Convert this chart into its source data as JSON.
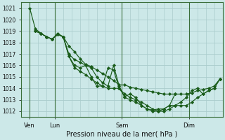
{
  "xlabel": "Pression niveau de la mer( hPa )",
  "bg_color": "#cce8e8",
  "grid_color": "#aacccc",
  "line_color": "#1a5c1a",
  "marker_color": "#1a5c1a",
  "ylim": [
    1011.5,
    1021.5
  ],
  "yticks": [
    1012,
    1013,
    1014,
    1015,
    1016,
    1017,
    1018,
    1019,
    1020,
    1021
  ],
  "xlim": [
    0,
    72
  ],
  "xtick_positions": [
    3,
    12,
    36,
    60
  ],
  "xtick_labels": [
    "Ven",
    "Lun",
    "Sam",
    "Dim"
  ],
  "vline_positions": [
    3,
    12,
    36,
    60
  ],
  "series": [
    {
      "x": [
        3,
        5,
        7,
        9,
        11,
        13,
        15,
        17,
        19,
        21,
        23,
        25,
        27,
        29,
        31,
        33,
        35,
        37,
        39,
        41,
        43,
        45,
        47,
        49,
        51,
        53,
        55,
        57,
        59,
        61,
        63,
        65,
        67,
        69,
        71
      ],
      "y": [
        1021.0,
        1019.2,
        1018.8,
        1018.5,
        1018.3,
        1018.7,
        1018.5,
        1017.7,
        1017.2,
        1016.6,
        1016.1,
        1015.9,
        1015.6,
        1015.3,
        1015.0,
        1014.7,
        1014.3,
        1014.3,
        1014.1,
        1014.0,
        1013.9,
        1013.8,
        1013.7,
        1013.6,
        1013.5,
        1013.5,
        1013.5,
        1013.5,
        1013.5,
        1013.6,
        1013.8,
        1013.9,
        1014.0,
        1014.2,
        1014.8
      ]
    },
    {
      "x": [
        5,
        7,
        9,
        11,
        13,
        15,
        17,
        19,
        21,
        23,
        25,
        27,
        29,
        31,
        33,
        35,
        37,
        39,
        41,
        43,
        45,
        47,
        49,
        51,
        53,
        55,
        57,
        59,
        61,
        63,
        65,
        67,
        69,
        71
      ],
      "y": [
        1019.0,
        1018.8,
        1018.5,
        1018.3,
        1018.7,
        1018.5,
        1016.8,
        1016.0,
        1015.8,
        1016.0,
        1015.0,
        1014.2,
        1014.2,
        1015.8,
        1015.6,
        1014.0,
        1013.3,
        1013.5,
        1013.2,
        1012.5,
        1012.2,
        1012.1,
        1012.2,
        1012.2,
        1012.5,
        1012.5,
        1012.5,
        1012.5,
        1012.8,
        1013.2,
        1013.5,
        1013.8,
        1014.0,
        1014.8
      ]
    },
    {
      "x": [
        5,
        7,
        9,
        11,
        13,
        15,
        17,
        19,
        21,
        23,
        25,
        27,
        29,
        31,
        33,
        35,
        37,
        39,
        41,
        43,
        45,
        47,
        49,
        51,
        53,
        55
      ],
      "y": [
        1019.0,
        1018.8,
        1018.5,
        1018.3,
        1018.7,
        1018.5,
        1017.0,
        1016.5,
        1016.3,
        1016.0,
        1015.8,
        1015.0,
        1014.5,
        1014.2,
        1016.0,
        1014.2,
        1013.2,
        1013.0,
        1012.8,
        1012.5,
        1012.2,
        1012.0,
        1012.0,
        1012.2,
        1012.5,
        1013.5
      ]
    },
    {
      "x": [
        5,
        7,
        9,
        11,
        13,
        15,
        17,
        19,
        21,
        23,
        25,
        27,
        29,
        31,
        33,
        35,
        37,
        39,
        41,
        43,
        45,
        47,
        49,
        51,
        53,
        55,
        57,
        59,
        61,
        63,
        65,
        67,
        69,
        71
      ],
      "y": [
        1019.0,
        1018.8,
        1018.5,
        1018.3,
        1018.8,
        1018.5,
        1016.8,
        1015.8,
        1015.5,
        1015.2,
        1014.8,
        1014.5,
        1014.2,
        1014.0,
        1014.0,
        1014.0,
        1013.5,
        1013.2,
        1013.0,
        1012.8,
        1012.5,
        1012.2,
        1012.0,
        1012.0,
        1012.2,
        1012.5,
        1012.8,
        1013.2,
        1013.8,
        1014.0,
        1013.5,
        1013.8,
        1014.0,
        1014.8
      ]
    }
  ]
}
